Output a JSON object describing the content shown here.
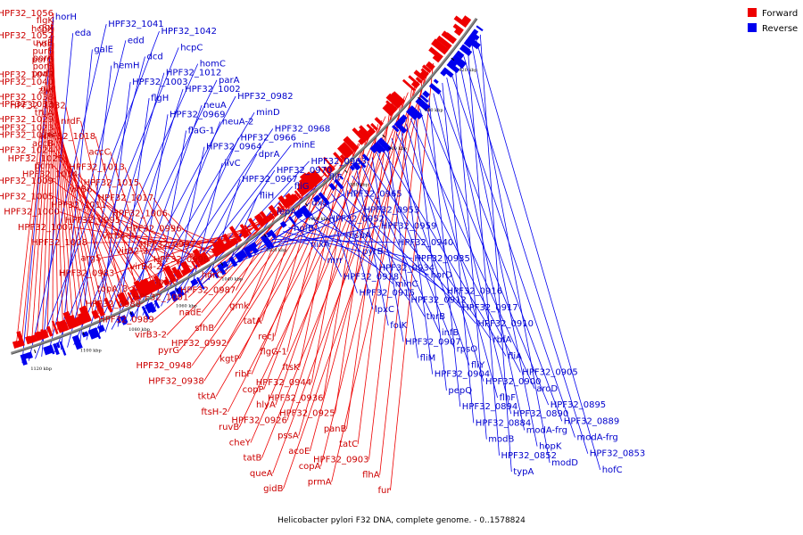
{
  "caption": "Helicobacter pylori F32 DNA, complete genome. - 0..1578824",
  "legend": [
    {
      "label": "Forward",
      "color": "#ee0000"
    },
    {
      "label": "Reverse",
      "color": "#0000ee"
    }
  ],
  "ticks": [
    "1120 kbp",
    "1100 kbp",
    "1080 kbp",
    "1060 kbp",
    "1040 kbp",
    "1020 kbp",
    "1000 kbp",
    "980 kbp",
    "960 kbp",
    "940 kbp",
    "920 kbp"
  ],
  "forward_labels": [
    "HPF32_1056",
    "flgK",
    "ggt",
    "hcpX",
    "HPF32_1052",
    "uvrB",
    "horI",
    "purB",
    "porA",
    "porG",
    "porB",
    "porD",
    "HPF32_1043",
    "HPF32_1040",
    "glk",
    "zwf",
    "HPF32_1038",
    "HPF32_1033",
    "HPF32_1032",
    "truA",
    "HPF32_1029",
    "nrdF",
    "HPF32_1023",
    "HPF32_1026",
    "HPF32_1018",
    "accB",
    "HPF32_1024",
    "accC",
    "HPF32_1025",
    "pcm",
    "HPF32_1013",
    "HPF32_1014",
    "HPF32_1009",
    "HPF32_1015",
    "virB6",
    "HPF32_1005",
    "HPF32_1017",
    "HPF32_1011",
    "HPF32_1000",
    "HPF32_1006",
    "HPF32_0995",
    "HPF32_1007",
    "HPF32_0996",
    "virB4-2",
    "HPF32_1008",
    "HPF32_0997",
    "virB2-2",
    "argS",
    "HPF32_0998",
    "virB4-2",
    "HPF32_0983",
    "horC",
    "lpxK",
    "topA_3",
    "HPF32_0987",
    "HPF32_1001",
    "HPF32_0988",
    "gmk",
    "nadE",
    "HPF32_0989",
    "tatA",
    "sfhB",
    "virB3-2",
    "recJ",
    "HPF32_0992",
    "pyrG",
    "flgG-1",
    "kgtP",
    "HPF32_0948",
    "ftsK",
    "ribF",
    "HPF32_0938",
    "HPF32_0944",
    "copP",
    "tktA",
    "HPF32_0936",
    "hlyA",
    "ftsH-2",
    "HPF32_0925",
    "HPF32_0926",
    "ruvB",
    "panB",
    "pssA",
    "cheY",
    "tatC",
    "acoE",
    "tatB",
    "HPF32_0903",
    "copA",
    "queA",
    "flhA",
    "prmA",
    "gidB",
    "fur"
  ],
  "reverse_labels": [
    "horH",
    "HPF32_1041",
    "HPF32_1042",
    "eda",
    "edd",
    "hcpC",
    "galE",
    "dcd",
    "homC",
    "hemH",
    "HPF32_1012",
    "parA",
    "HPF32_1003",
    "HPF32_1002",
    "HPF32_0982",
    "flgH",
    "neuA",
    "minD",
    "HPF32_0969",
    "neuA-2",
    "HPF32_0968",
    "flaG-1",
    "HPF32_0966",
    "minE",
    "HPF32_0964",
    "dprA",
    "HPF32_0963",
    "ilvC",
    "HPF32_0970",
    "fliF",
    "HPF32_0967",
    "fliG",
    "HPF32_0965",
    "fliH",
    "dxs",
    "HPF32_0953",
    "lepA",
    "HPF32_0952",
    "HPF32_0959",
    "hofB",
    "msbA",
    "HPF32_0940",
    "nixA",
    "pyrB",
    "HPF32_0935",
    "mrr",
    "HPF32_0934",
    "horD",
    "HPF32_0918",
    "minC",
    "HPF32_0916",
    "HPF32_0915",
    "HPF32_0912",
    "HPF32_0917",
    "lpxC",
    "thrB",
    "HPF32_0910",
    "folK",
    "infB",
    "rbfA",
    "HPF32_0907",
    "rpsO",
    "fliA",
    "fliM",
    "fliY",
    "HPF32_0905",
    "HPF32_0904",
    "HPF32_0900",
    "aroD",
    "pepQ",
    "flhF",
    "HPF32_0895",
    "HPF32_0894",
    "HPF32_0890",
    "HPF32_0889",
    "HPF32_0884",
    "modA-frg",
    "modA-frg",
    "modB",
    "hopK",
    "HPF32_0853",
    "HPF32_0852",
    "modD",
    "hofC",
    "typA"
  ]
}
